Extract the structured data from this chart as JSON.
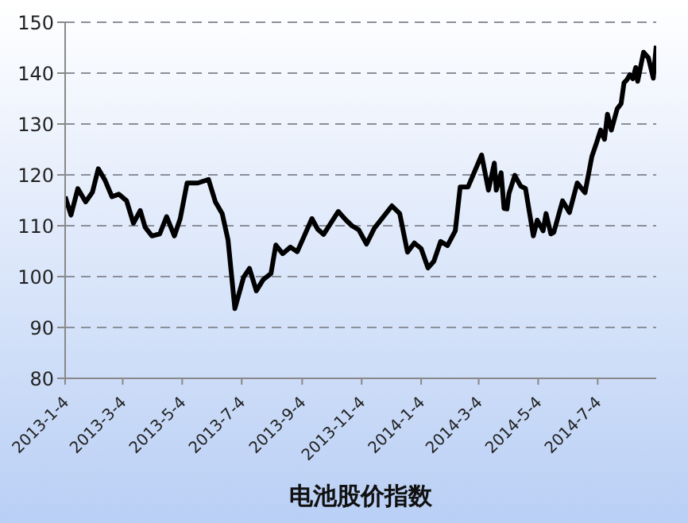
{
  "chart_data": {
    "type": "line",
    "xlabel": "电池股价指数",
    "x": [
      "2013-01-04",
      "2013-01-10",
      "2013-01-17",
      "2013-01-25",
      "2013-02-01",
      "2013-02-07",
      "2013-02-14",
      "2013-02-21",
      "2013-02-28",
      "2013-03-08",
      "2013-03-15",
      "2013-03-22",
      "2013-03-27",
      "2013-04-03",
      "2013-04-11",
      "2013-04-18",
      "2013-04-26",
      "2013-05-02",
      "2013-05-09",
      "2013-05-20",
      "2013-05-31",
      "2013-06-07",
      "2013-06-14",
      "2013-06-20",
      "2013-06-27",
      "2013-07-06",
      "2013-07-12",
      "2013-07-19",
      "2013-07-26",
      "2013-08-03",
      "2013-08-08",
      "2013-08-15",
      "2013-08-23",
      "2013-08-30",
      "2013-09-14",
      "2013-09-20",
      "2013-09-26",
      "2013-10-11",
      "2013-10-19",
      "2013-10-25",
      "2013-11-01",
      "2013-11-09",
      "2013-11-17",
      "2013-12-05",
      "2013-12-13",
      "2013-12-21",
      "2013-12-28",
      "2014-01-04",
      "2014-01-11",
      "2014-01-17",
      "2014-01-24",
      "2014-01-31",
      "2014-02-08",
      "2014-02-13",
      "2014-02-21",
      "2014-03-07",
      "2014-03-14",
      "2014-03-20",
      "2014-03-22",
      "2014-03-27",
      "2014-03-30",
      "2014-04-02",
      "2014-04-04",
      "2014-04-10",
      "2014-04-16",
      "2014-04-21",
      "2014-04-29",
      "2014-05-03",
      "2014-05-09",
      "2014-05-12",
      "2014-05-17",
      "2014-05-20",
      "2014-05-29",
      "2014-06-05",
      "2014-06-13",
      "2014-06-21",
      "2014-06-28",
      "2014-07-03",
      "2014-07-07",
      "2014-07-11",
      "2014-07-14",
      "2014-07-18",
      "2014-07-24",
      "2014-07-28",
      "2014-07-31",
      "2014-08-03",
      "2014-08-06",
      "2014-08-09",
      "2014-08-12",
      "2014-08-14",
      "2014-08-20",
      "2014-08-25",
      "2014-08-30",
      "2014-09-02"
    ],
    "series": [
      {
        "color": "#000000",
        "values": [
          115.7,
          112.1,
          117.3,
          114.7,
          116.6,
          121.2,
          118.9,
          115.7,
          116.2,
          114.9,
          110.5,
          113.0,
          109.7,
          108.0,
          108.4,
          111.8,
          108.0,
          111.4,
          118.4,
          118.4,
          119.1,
          114.7,
          112.4,
          107.2,
          93.7,
          99.9,
          101.6,
          97.2,
          99.4,
          100.6,
          106.2,
          104.5,
          105.8,
          104.9,
          111.4,
          109.3,
          108.3,
          112.8,
          111.1,
          110.0,
          109.2,
          106.4,
          109.5,
          113.9,
          112.4,
          104.8,
          106.6,
          105.5,
          101.7,
          103.0,
          106.9,
          106.1,
          109.0,
          117.6,
          117.6,
          123.9,
          117.0,
          122.3,
          117.0,
          120.4,
          113.4,
          113.3,
          116.3,
          119.9,
          117.8,
          117.3,
          108.0,
          111.1,
          109.0,
          112.4,
          108.4,
          108.7,
          114.9,
          112.6,
          118.4,
          116.5,
          123.6,
          126.4,
          128.8,
          127.0,
          131.9,
          128.8,
          133.0,
          134.0,
          138.1,
          138.7,
          139.7,
          138.9,
          141.1,
          138.4,
          144.1,
          143.0,
          139.0,
          145.4
        ]
      }
    ],
    "xlim": [
      "2013-01-04",
      "2014-09-02"
    ],
    "xticks": [
      {
        "value": "2013-01-04",
        "label": "2013-1-4"
      },
      {
        "value": "2013-03-04",
        "label": "2013-3-4"
      },
      {
        "value": "2013-05-04",
        "label": "2013-5-4"
      },
      {
        "value": "2013-07-04",
        "label": "2013-7-4"
      },
      {
        "value": "2013-09-04",
        "label": "2013-9-4"
      },
      {
        "value": "2013-11-04",
        "label": "2013-11-4"
      },
      {
        "value": "2014-01-04",
        "label": "2014-1-4"
      },
      {
        "value": "2014-03-04",
        "label": "2014-3-4"
      },
      {
        "value": "2014-05-04",
        "label": "2014-5-4"
      },
      {
        "value": "2014-07-04",
        "label": "2014-7-4"
      }
    ],
    "ylim": [
      80,
      150
    ],
    "yticks": [
      80,
      90,
      100,
      110,
      120,
      130,
      140,
      150
    ],
    "grid": "y",
    "legend": false,
    "marker": "none",
    "line_style": "solid"
  }
}
